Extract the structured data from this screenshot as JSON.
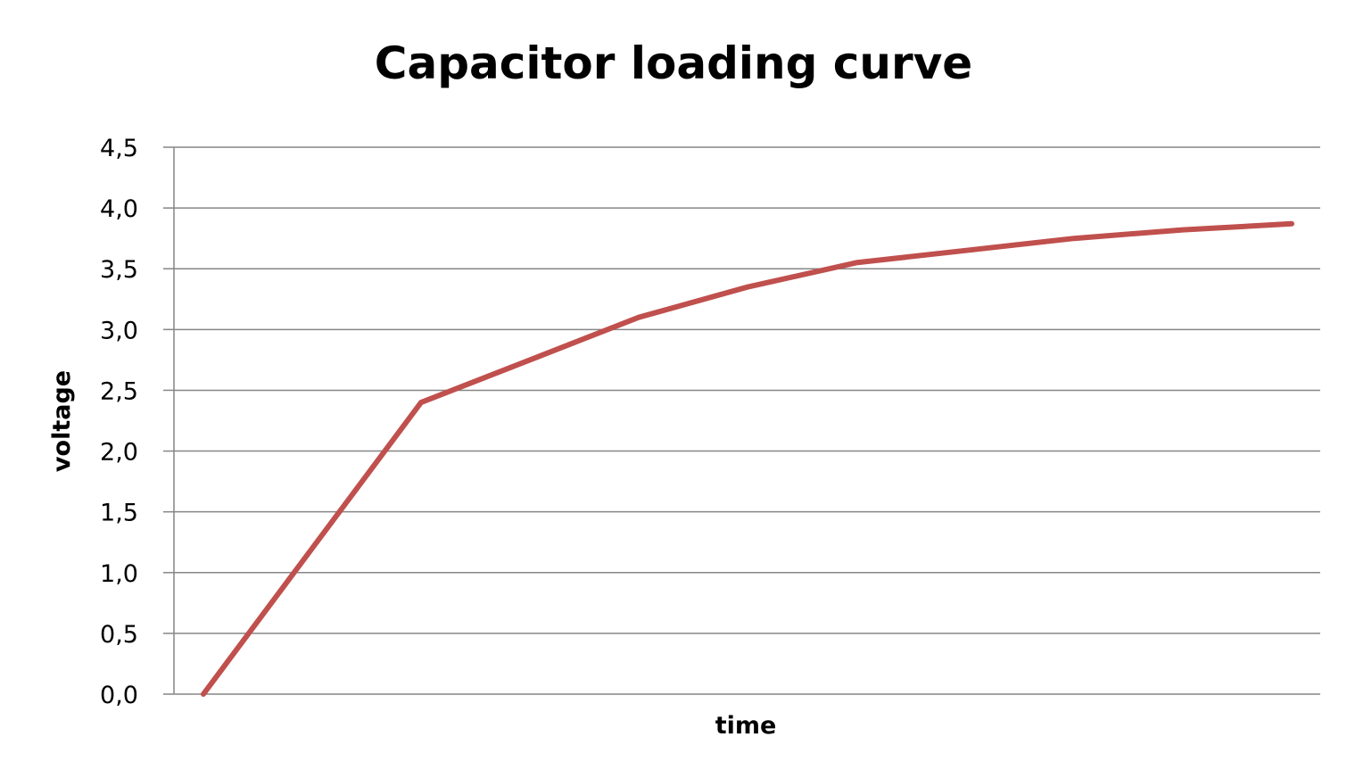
{
  "chart_data": {
    "type": "line",
    "title": "Capacitor loading curve",
    "xlabel": "time",
    "ylabel": "voltage",
    "x": [
      0,
      1,
      2,
      3,
      4,
      5,
      6,
      7,
      8,
      9,
      10
    ],
    "series": [
      {
        "values": [
          0.0,
          1.2,
          2.4,
          2.75,
          3.1,
          3.35,
          3.55,
          3.65,
          3.75,
          3.82,
          3.87
        ],
        "color": "#c0504d"
      }
    ],
    "ylim": [
      0,
      4.5
    ],
    "yticks": [
      "0,0",
      "0,5",
      "1,0",
      "1,5",
      "2,0",
      "2,5",
      "3,0",
      "3,5",
      "4,0",
      "4,5"
    ],
    "grid": "horizontal",
    "legend": "none"
  }
}
